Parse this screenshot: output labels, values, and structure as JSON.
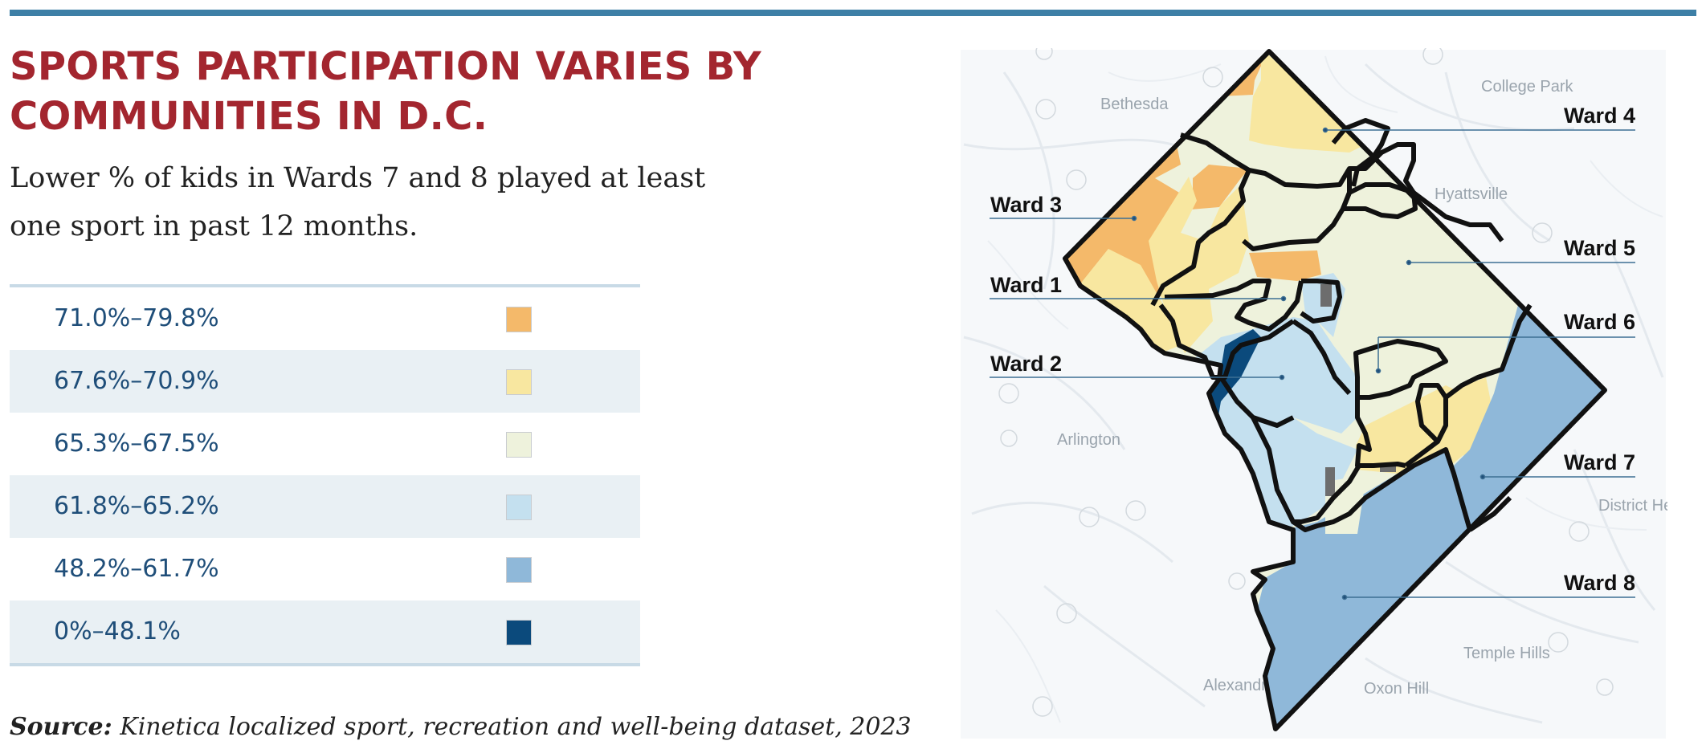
{
  "header": {
    "title": "SPORTS PARTICIPATION VARIES BY COMMUNITIES IN D.C.",
    "subtitle": "Lower % of kids in Wards 7 and 8 played at least one sport in past 12 months."
  },
  "legend": {
    "items": [
      {
        "label": "71.0%–79.8%",
        "color": "#f4b96a"
      },
      {
        "label": "67.6%–70.9%",
        "color": "#f8e7a0"
      },
      {
        "label": "65.3%–67.5%",
        "color": "#eef2dc"
      },
      {
        "label": "61.8%–65.2%",
        "color": "#c4e0ef"
      },
      {
        "label": "48.2%–61.7%",
        "color": "#8fb8d9"
      },
      {
        "label": "0%–48.1%",
        "color": "#0b4a7c"
      }
    ]
  },
  "map": {
    "wards": [
      {
        "label": "Ward 1"
      },
      {
        "label": "Ward 2"
      },
      {
        "label": "Ward 3"
      },
      {
        "label": "Ward 4"
      },
      {
        "label": "Ward 5"
      },
      {
        "label": "Ward 6"
      },
      {
        "label": "Ward 7"
      },
      {
        "label": "Ward 8"
      }
    ],
    "places": [
      {
        "label": "Bethesda"
      },
      {
        "label": "College Park"
      },
      {
        "label": "Hyattsville"
      },
      {
        "label": "Arlington"
      },
      {
        "label": "Temple Hills"
      },
      {
        "label": "Oxon Hill"
      },
      {
        "label": "Alexandria"
      },
      {
        "label": "District Heights"
      }
    ]
  },
  "source": {
    "label": "Source:",
    "text": "Kinetica localized sport, recreation and well-being dataset, 2023"
  }
}
